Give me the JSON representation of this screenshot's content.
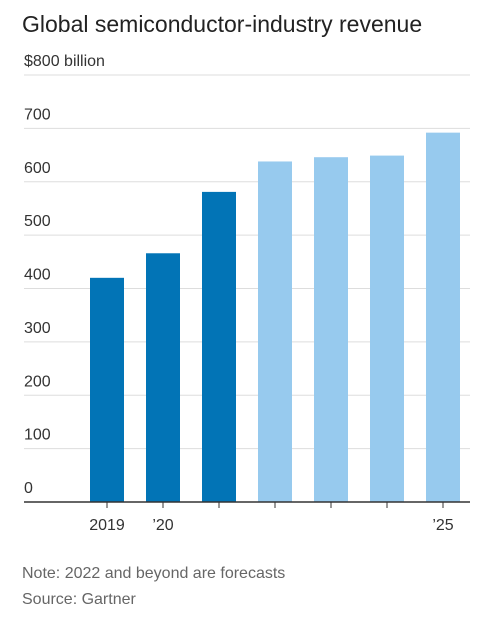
{
  "chart_data": {
    "type": "bar",
    "title": "Global semiconductor-industry revenue",
    "xlabel": "",
    "ylabel": "",
    "unit_label": "$800 billion",
    "y_tick_labels": [
      "0",
      "100",
      "200",
      "300",
      "400",
      "500",
      "600",
      "700",
      "$800 billion"
    ],
    "y_ticks": [
      0,
      100,
      200,
      300,
      400,
      500,
      600,
      700,
      800
    ],
    "ylim": [
      0,
      800
    ],
    "categories": [
      "2019",
      "2020",
      "2021",
      "2022",
      "2023",
      "2024",
      "2025"
    ],
    "x_tick_labels": [
      "2019",
      "’20",
      "",
      "",
      "",
      "",
      "’25"
    ],
    "values": [
      420,
      466,
      581,
      638,
      646,
      649,
      692
    ],
    "forecast": [
      false,
      false,
      false,
      true,
      true,
      true,
      true
    ],
    "grid": true,
    "colors": {
      "actual": "#0274b6",
      "forecast": "#97caee",
      "grid": "#dddddd",
      "baseline": "#333333"
    }
  },
  "note": "Note: 2022 and beyond are forecasts",
  "source": "Source: Gartner"
}
